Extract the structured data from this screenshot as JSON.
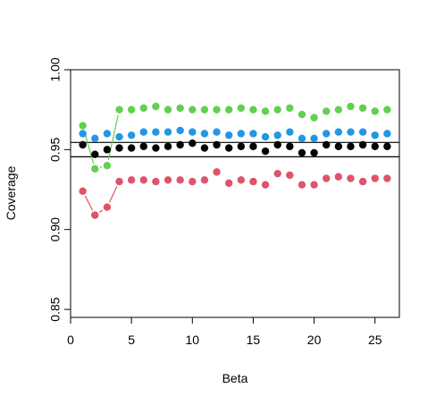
{
  "chart_data": {
    "type": "scatter",
    "title": "",
    "xlabel": "Beta",
    "ylabel": "Coverage",
    "xlim": [
      0,
      27
    ],
    "ylim": [
      0.845,
      1.0
    ],
    "x_ticks": [
      0,
      5,
      10,
      15,
      20,
      25
    ],
    "x_tick_labels": [
      "0",
      "5",
      "10",
      "15",
      "20",
      "25"
    ],
    "y_ticks": [
      0.85,
      0.9,
      0.95,
      1.0
    ],
    "y_tick_labels": [
      "0.85",
      "0.90",
      "0.95",
      "1.00"
    ],
    "reference_lines": [
      0.9545,
      0.9455
    ],
    "grid": false,
    "legend": "none",
    "x": [
      1,
      2,
      3,
      4,
      5,
      6,
      7,
      8,
      9,
      10,
      11,
      12,
      13,
      14,
      15,
      16,
      17,
      18,
      19,
      20,
      21,
      22,
      23,
      24,
      25,
      26
    ],
    "series": [
      {
        "color": "#61D04F",
        "connect_first": 4,
        "values": [
          0.965,
          0.938,
          0.94,
          0.975,
          0.975,
          0.976,
          0.977,
          0.975,
          0.976,
          0.975,
          0.975,
          0.975,
          0.975,
          0.976,
          0.975,
          0.974,
          0.975,
          0.976,
          0.972,
          0.97,
          0.974,
          0.975,
          0.977,
          0.976,
          0.974,
          0.975
        ]
      },
      {
        "color": "#2297E6",
        "connect_first": 0,
        "values": [
          0.96,
          0.957,
          0.96,
          0.958,
          0.959,
          0.961,
          0.961,
          0.961,
          0.962,
          0.961,
          0.96,
          0.961,
          0.959,
          0.96,
          0.96,
          0.958,
          0.959,
          0.961,
          0.957,
          0.957,
          0.96,
          0.961,
          0.961,
          0.961,
          0.959,
          0.96
        ]
      },
      {
        "color": "#000000",
        "connect_first": 0,
        "values": [
          0.953,
          0.947,
          0.95,
          0.951,
          0.951,
          0.952,
          0.951,
          0.952,
          0.953,
          0.954,
          0.951,
          0.953,
          0.951,
          0.952,
          0.952,
          0.949,
          0.953,
          0.952,
          0.948,
          0.948,
          0.953,
          0.952,
          0.952,
          0.953,
          0.952,
          0.952
        ]
      },
      {
        "color": "#DF536B",
        "connect_first": 4,
        "values": [
          0.924,
          0.909,
          0.914,
          0.93,
          0.931,
          0.931,
          0.93,
          0.931,
          0.931,
          0.93,
          0.931,
          0.936,
          0.929,
          0.931,
          0.93,
          0.928,
          0.935,
          0.934,
          0.928,
          0.928,
          0.932,
          0.933,
          0.932,
          0.93,
          0.932,
          0.932
        ]
      }
    ]
  }
}
